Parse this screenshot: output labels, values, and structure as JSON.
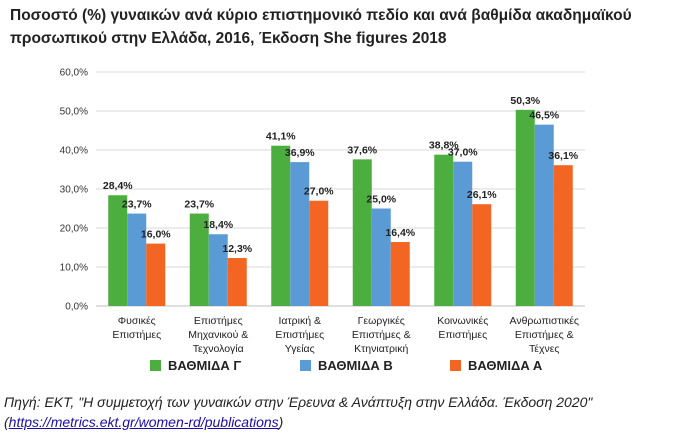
{
  "title": "Ποσοστό (%) γυναικών ανά κύριο επιστημονικό πεδίο και ανά βαθμίδα ακαδημαϊκού προσωπικού στην Ελλάδα, 2016, Έκδοση She figures 2018",
  "source": {
    "text": "Πηγή: ΕΚΤ, \"Η συμμετοχή των γυναικών στην Έρευνα & Ανάπτυξη στην Ελλάδα. Έκδοση 2020\"",
    "link_open": "(",
    "link": "https://metrics.ekt.gr/women-rd/publications",
    "link_close": ")"
  },
  "chart_data": {
    "type": "bar",
    "title": "Ποσοστό (%) γυναικών ανά κύριο επιστημονικό πεδίο και ανά βαθμίδα ακαδημαϊκού προσωπικού στην Ελλάδα, 2016, Έκδοση She figures 2018",
    "xlabel": "",
    "ylabel": "",
    "ylim": [
      0,
      60
    ],
    "yticks": [
      "0,0%",
      "10,0%",
      "20,0%",
      "30,0%",
      "40,0%",
      "50,0%",
      "60,0%"
    ],
    "grid": true,
    "legend_position": "bottom",
    "categories": [
      [
        "Φυσικές",
        "Επιστήμες"
      ],
      [
        "Επιστήμες",
        "Μηχανικού &",
        "Τεχνολογία"
      ],
      [
        "Ιατρική &",
        "Επιστήμες",
        "Υγείας"
      ],
      [
        "Γεωργικές",
        "Επιστήμες &",
        "Κτηνιατρική"
      ],
      [
        "Κοινωνικές",
        "Επιστήμες"
      ],
      [
        "Ανθρωπιστικές",
        "Επιστήμες &",
        "Τέχνες"
      ]
    ],
    "series": [
      {
        "name": "ΒΑΘΜΙΔΑ Γ",
        "color": "#4cae3f",
        "values": [
          28.4,
          23.7,
          41.1,
          37.6,
          38.8,
          50.3
        ],
        "labels": [
          "28,4%",
          "23,7%",
          "41,1%",
          "37,6%",
          "38,8%",
          "50,3%"
        ]
      },
      {
        "name": "ΒΑΘΜΙΔΑ Β",
        "color": "#5b9bd5",
        "values": [
          23.7,
          18.4,
          36.9,
          25.0,
          37.0,
          46.5
        ],
        "labels": [
          "23,7%",
          "18,4%",
          "36,9%",
          "25,0%",
          "37,0%",
          "46,5%"
        ]
      },
      {
        "name": "ΒΑΘΜΙΔΑ Α",
        "color": "#f26522",
        "values": [
          16.0,
          12.3,
          27.0,
          16.4,
          26.1,
          36.1
        ],
        "labels": [
          "16,0%",
          "12,3%",
          "27,0%",
          "16,4%",
          "26,1%",
          "36,1%"
        ]
      }
    ]
  }
}
